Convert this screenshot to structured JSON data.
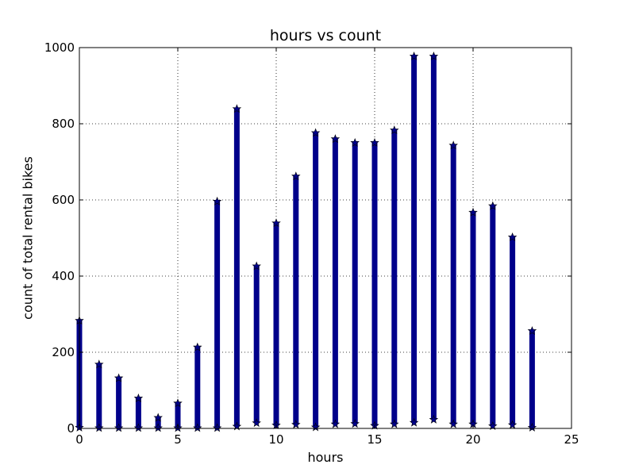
{
  "chart_data": {
    "type": "scatter",
    "title": "hours vs count",
    "xlabel": "hours",
    "ylabel": "count of total rental bikes",
    "xlim": [
      0,
      25
    ],
    "ylim": [
      0,
      1000
    ],
    "x_ticks": [
      0,
      5,
      10,
      15,
      20,
      25
    ],
    "y_ticks": [
      0,
      200,
      400,
      600,
      800,
      1000
    ],
    "grid": true,
    "marker": "star",
    "marker_color": "#00008b",
    "series": [
      {
        "points": [
          {
            "x": 0,
            "min": 2,
            "max": 283
          },
          {
            "x": 1,
            "min": 1,
            "max": 168
          },
          {
            "x": 2,
            "min": 1,
            "max": 132
          },
          {
            "x": 3,
            "min": 1,
            "max": 79
          },
          {
            "x": 4,
            "min": 1,
            "max": 28
          },
          {
            "x": 5,
            "min": 1,
            "max": 66
          },
          {
            "x": 6,
            "min": 1,
            "max": 213
          },
          {
            "x": 7,
            "min": 1,
            "max": 596
          },
          {
            "x": 8,
            "min": 5,
            "max": 839
          },
          {
            "x": 9,
            "min": 14,
            "max": 426
          },
          {
            "x": 10,
            "min": 8,
            "max": 539
          },
          {
            "x": 11,
            "min": 10,
            "max": 662
          },
          {
            "x": 12,
            "min": 3,
            "max": 776
          },
          {
            "x": 13,
            "min": 11,
            "max": 760
          },
          {
            "x": 14,
            "min": 12,
            "max": 750
          },
          {
            "x": 15,
            "min": 7,
            "max": 750
          },
          {
            "x": 16,
            "min": 11,
            "max": 783
          },
          {
            "x": 17,
            "min": 15,
            "max": 977
          },
          {
            "x": 18,
            "min": 23,
            "max": 977
          },
          {
            "x": 19,
            "min": 11,
            "max": 743
          },
          {
            "x": 20,
            "min": 11,
            "max": 567
          },
          {
            "x": 21,
            "min": 6,
            "max": 584
          },
          {
            "x": 22,
            "min": 9,
            "max": 502
          },
          {
            "x": 23,
            "min": 2,
            "max": 256
          }
        ]
      }
    ]
  }
}
